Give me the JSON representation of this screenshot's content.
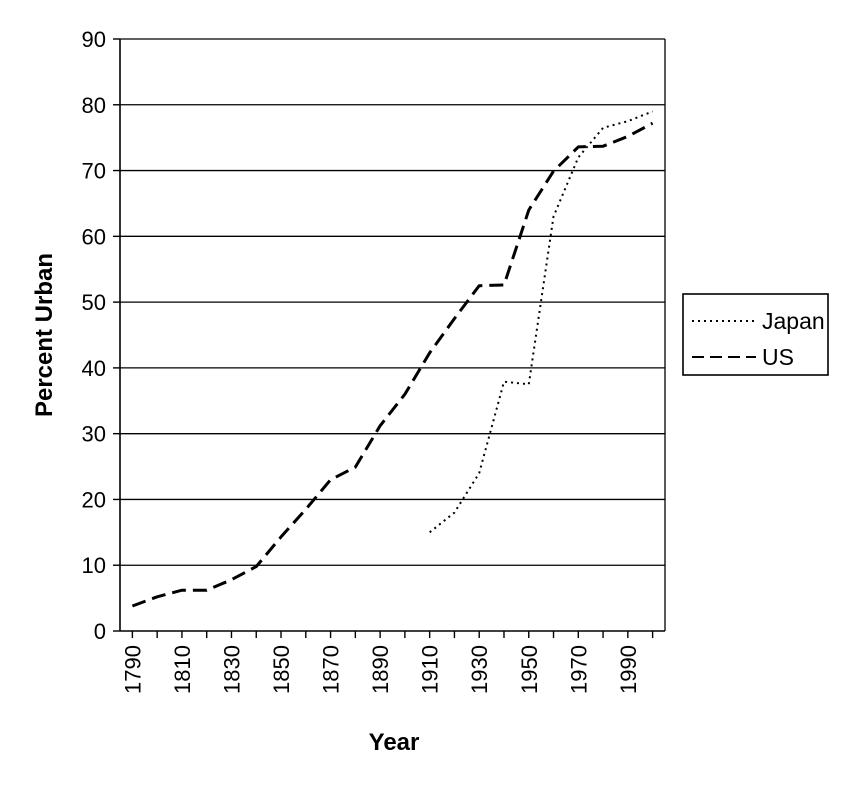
{
  "chart_data": {
    "type": "line",
    "title": "",
    "xlabel": "Year",
    "ylabel": "Percent Urban",
    "ylim": [
      0,
      90
    ],
    "xlim": [
      1785,
      2005
    ],
    "yticks": [
      0,
      10,
      20,
      30,
      40,
      50,
      60,
      70,
      80,
      90
    ],
    "xtick_labels": [
      "1790",
      "1810",
      "1830",
      "1850",
      "1870",
      "1890",
      "1910",
      "1930",
      "1950",
      "1970",
      "1990"
    ],
    "grid": "horizontal",
    "legend_position": "right",
    "series": [
      {
        "name": "Japan",
        "style": "dotted",
        "x": [
          1910,
          1920,
          1930,
          1940,
          1950,
          1960,
          1970,
          1980,
          1990,
          2000
        ],
        "y": [
          15,
          18,
          24,
          37.9,
          37.5,
          63,
          72,
          76.5,
          77.5,
          79
        ]
      },
      {
        "name": "US",
        "style": "dashed",
        "x": [
          1790,
          1800,
          1810,
          1820,
          1830,
          1840,
          1850,
          1860,
          1870,
          1880,
          1890,
          1900,
          1910,
          1920,
          1930,
          1940,
          1950,
          1960,
          1970,
          1980,
          1990,
          2000
        ],
        "y": [
          3.8,
          5.2,
          6.2,
          6.2,
          7.8,
          9.8,
          14.3,
          18.5,
          23,
          24.9,
          31.2,
          36,
          42.3,
          47.5,
          52.5,
          52.6,
          64,
          69.9,
          73.6,
          73.7,
          75.2,
          77.2
        ]
      }
    ]
  }
}
